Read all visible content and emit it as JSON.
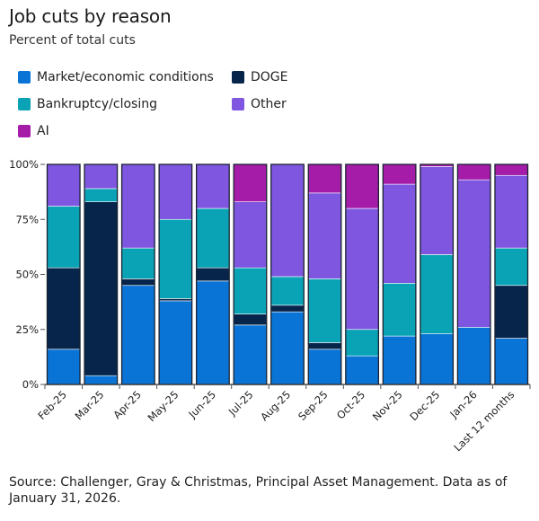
{
  "header": {
    "title": "Job cuts by reason",
    "subtitle": "Percent of total cuts"
  },
  "source": "Source: Challenger, Gray & Christmas, Principal Asset Management. Data as of January 31, 2026.",
  "colors": {
    "market": "#0a74d6",
    "doge": "#07254b",
    "bankruptcy": "#0aa3b5",
    "other": "#7f56e0",
    "ai": "#a41ca8"
  },
  "chart_data": {
    "type": "bar",
    "stacked": true,
    "categories": [
      "Feb-25",
      "Mar-25",
      "Apr-25",
      "May-25",
      "Jun-25",
      "Jul-25",
      "Aug-25",
      "Sep-25",
      "Oct-25",
      "Nov-25",
      "Dec-25",
      "Jan-26",
      "Last 12 months"
    ],
    "series": [
      {
        "name": "Market/economic conditions",
        "key": "market",
        "values": [
          16,
          4,
          45,
          38,
          47,
          27,
          33,
          16,
          13,
          22,
          23,
          26,
          21
        ]
      },
      {
        "name": "DOGE",
        "key": "doge",
        "values": [
          37,
          79,
          3,
          1,
          6,
          5,
          3,
          3,
          0,
          0,
          0,
          0,
          24
        ]
      },
      {
        "name": "Bankruptcy/closing",
        "key": "bankruptcy",
        "values": [
          28,
          6,
          14,
          36,
          27,
          21,
          13,
          29,
          12,
          24,
          36,
          0,
          17
        ]
      },
      {
        "name": "Other",
        "key": "other",
        "values": [
          19,
          11,
          38,
          25,
          20,
          30,
          51,
          39,
          55,
          45,
          40,
          67,
          33
        ]
      },
      {
        "name": "AI",
        "key": "ai",
        "values": [
          0,
          0,
          0,
          0,
          0,
          17,
          0,
          13,
          20,
          9,
          1,
          7,
          5
        ]
      }
    ],
    "yticks": [
      "0%",
      "25%",
      "50%",
      "75%",
      "100%"
    ],
    "ylim": [
      0,
      100
    ],
    "legend_placement": "top",
    "grid": false
  }
}
